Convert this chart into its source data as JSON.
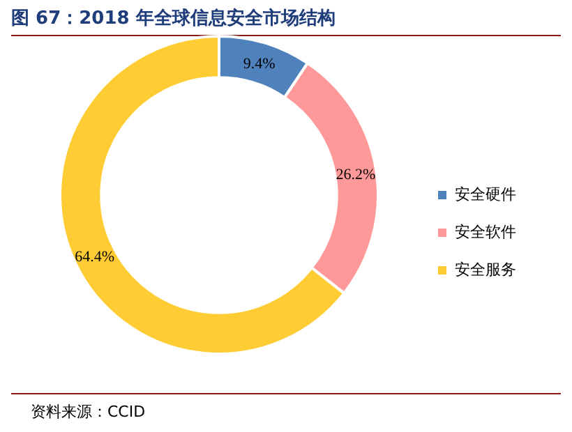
{
  "chart_data": {
    "type": "donut",
    "title": "图 67：2018 年全球信息安全市场结构",
    "categories": [
      "安全硬件",
      "安全软件",
      "安全服务"
    ],
    "values": [
      9.4,
      26.2,
      64.4
    ],
    "colors": [
      "#4f81bd",
      "#ff9999",
      "#ffcc33"
    ],
    "value_labels": [
      "9.4%",
      "26.2%",
      "64.4%"
    ],
    "legend": "right",
    "annotations": [
      "资料来源：CCID"
    ]
  }
}
